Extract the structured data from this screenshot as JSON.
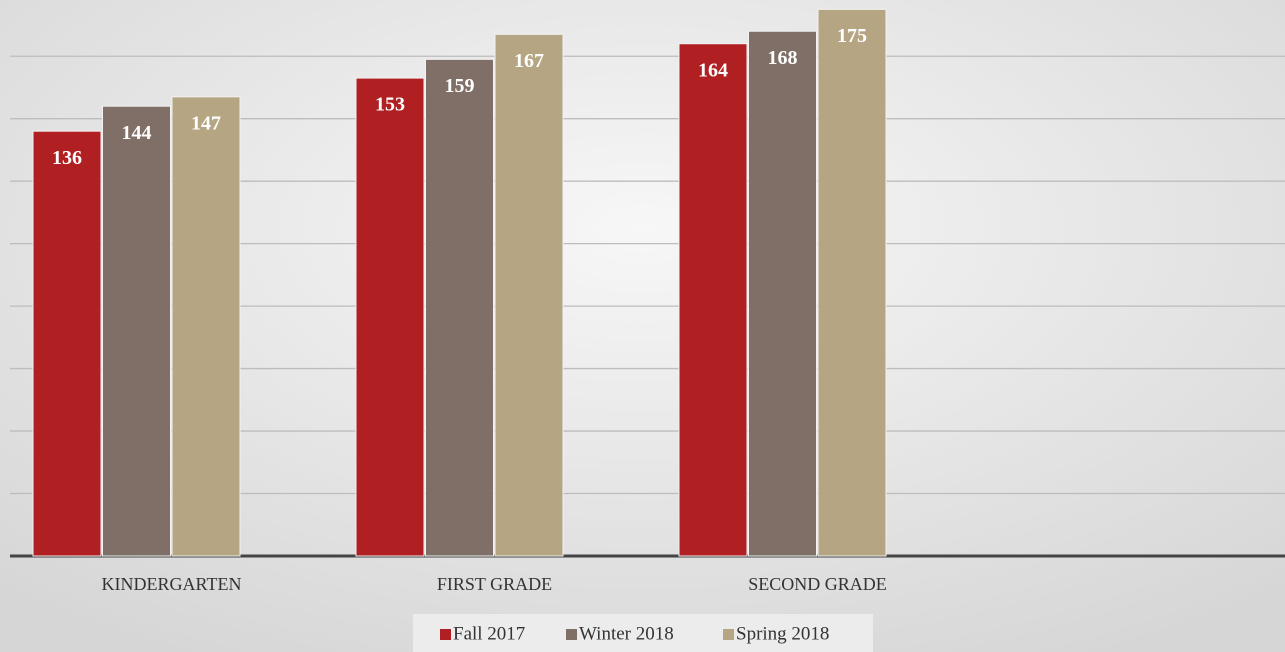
{
  "chart_data": {
    "type": "bar",
    "categories": [
      "KINDERGARTEN",
      "FIRST GRADE",
      "SECOND GRADE",
      null
    ],
    "series": [
      {
        "name": "Fall 2017",
        "color": "#b01f22",
        "values": [
          136,
          153,
          164,
          null
        ]
      },
      {
        "name": "Winter 2018",
        "color": "#7f6f66",
        "values": [
          144,
          159,
          168,
          null
        ]
      },
      {
        "name": "Spring 2018",
        "color": "#b5a582",
        "values": [
          147,
          167,
          175,
          null
        ]
      }
    ],
    "ylim": [
      0,
      178
    ],
    "yticks": [
      0,
      20,
      40,
      60,
      80,
      100,
      120,
      140,
      160
    ],
    "grid": true,
    "legend": "bottom"
  }
}
